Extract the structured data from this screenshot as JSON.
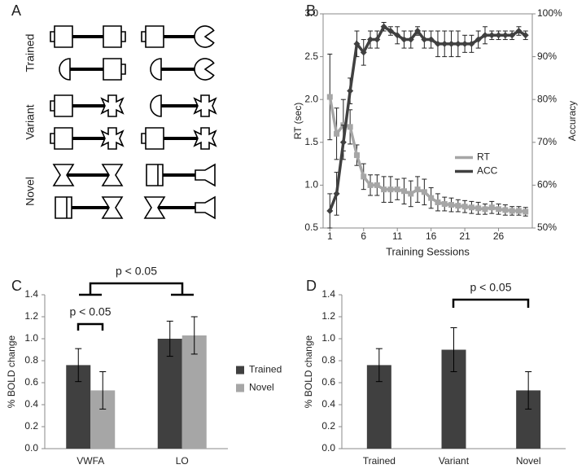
{
  "stimuli": {
    "panel": "A",
    "groups": [
      "Trained",
      "Variant",
      "Novel"
    ]
  },
  "chart_data": [
    {
      "type": "line",
      "panel": "B",
      "x_label": "Training Sessions",
      "y_label": "RT (sec)",
      "y2_label": "Accuracy",
      "x": [
        1,
        2,
        3,
        4,
        5,
        6,
        7,
        8,
        9,
        10,
        11,
        12,
        13,
        14,
        15,
        16,
        17,
        18,
        19,
        20,
        21,
        22,
        23,
        24,
        25,
        26,
        27,
        28,
        29,
        30
      ],
      "xlim": [
        0,
        31
      ],
      "xticks": [
        1,
        6,
        11,
        16,
        21,
        26
      ],
      "ylim": [
        0.5,
        3.0
      ],
      "yticks": [
        {
          "value": 0.5,
          "label": "0.5"
        },
        {
          "value": 1,
          "label": "1.0"
        },
        {
          "value": 1.5,
          "label": "1.5"
        },
        {
          "value": 2,
          "label": "2.0"
        },
        {
          "value": 2.5,
          "label": "2.5"
        },
        {
          "value": 3,
          "label": "3.0"
        }
      ],
      "y2lim": [
        50,
        100
      ],
      "y2ticks": [
        {
          "value": 50,
          "label": "50%"
        },
        {
          "value": 60,
          "label": "60%"
        },
        {
          "value": 70,
          "label": "70%"
        },
        {
          "value": 80,
          "label": "80%"
        },
        {
          "value": 90,
          "label": "90%"
        },
        {
          "value": 100,
          "label": "100%"
        }
      ],
      "legend": "center-right",
      "series": [
        {
          "name": "RT",
          "color": "#a6a6a6",
          "marker": "square",
          "values": [
            2.03,
            1.6,
            1.7,
            1.68,
            1.35,
            1.1,
            1.0,
            1.0,
            0.95,
            0.95,
            0.95,
            0.93,
            0.9,
            0.95,
            0.92,
            0.85,
            0.8,
            0.78,
            0.77,
            0.76,
            0.75,
            0.74,
            0.73,
            0.72,
            0.74,
            0.72,
            0.71,
            0.7,
            0.7,
            0.69
          ],
          "errors": [
            0.5,
            0.3,
            0.3,
            0.2,
            0.12,
            0.15,
            0.12,
            0.12,
            0.15,
            0.15,
            0.12,
            0.15,
            0.15,
            0.15,
            0.15,
            0.12,
            0.1,
            0.08,
            0.08,
            0.07,
            0.07,
            0.07,
            0.07,
            0.06,
            0.07,
            0.06,
            0.06,
            0.05,
            0.05,
            0.05
          ]
        },
        {
          "name": "ACC",
          "color": "#404040",
          "marker": "diamond",
          "axis": "y2",
          "values": [
            54,
            58,
            70,
            82,
            93,
            91,
            94,
            94,
            97,
            96,
            95,
            94,
            94,
            96,
            94,
            94,
            93,
            93,
            93,
            93,
            93,
            93,
            94,
            95,
            95,
            95,
            95,
            95,
            96,
            95
          ],
          "errors": [
            4,
            5,
            4,
            3,
            3,
            3,
            2,
            2,
            1,
            1,
            2,
            2,
            2,
            1,
            2,
            2,
            3,
            3,
            3,
            3,
            2,
            2,
            2,
            2,
            1,
            1,
            1,
            1,
            1,
            1
          ]
        }
      ]
    },
    {
      "type": "bar",
      "panel": "C",
      "y_label": "% BOLD change",
      "categories": [
        "VWFA",
        "LO"
      ],
      "ylim": [
        0,
        1.4
      ],
      "yticks": [
        {
          "value": 0,
          "label": "0.0"
        },
        {
          "value": 0.2,
          "label": "0.2"
        },
        {
          "value": 0.4,
          "label": "0.4"
        },
        {
          "value": 0.6,
          "label": "0.6"
        },
        {
          "value": 0.8,
          "label": "0.8"
        },
        {
          "value": 1,
          "label": "1.0"
        },
        {
          "value": 1.2,
          "label": "1.2"
        },
        {
          "value": 1.4,
          "label": "1.4"
        }
      ],
      "legend": "right",
      "annotations": [
        "p < 0.05",
        "p < 0.05"
      ],
      "series": [
        {
          "name": "Trained",
          "color": "#404040",
          "values": [
            0.76,
            1.0
          ],
          "errors": [
            0.15,
            0.16
          ]
        },
        {
          "name": "Novel",
          "color": "#a6a6a6",
          "values": [
            0.53,
            1.03
          ],
          "errors": [
            0.17,
            0.17
          ]
        }
      ]
    },
    {
      "type": "bar",
      "panel": "D",
      "y_label": "% BOLD change",
      "categories": [
        "Trained",
        "Variant",
        "Novel"
      ],
      "ylim": [
        0,
        1.4
      ],
      "yticks": [
        {
          "value": 0,
          "label": "0.0"
        },
        {
          "value": 0.2,
          "label": "0.2"
        },
        {
          "value": 0.4,
          "label": "0.4"
        },
        {
          "value": 0.6,
          "label": "0.6"
        },
        {
          "value": 0.8,
          "label": "0.8"
        },
        {
          "value": 1,
          "label": "1.0"
        },
        {
          "value": 1.2,
          "label": "1.2"
        },
        {
          "value": 1.4,
          "label": "1.4"
        }
      ],
      "annotations": [
        "p < 0.05"
      ],
      "series": [
        {
          "color": "#404040",
          "values": [
            0.76,
            0.9,
            0.53
          ],
          "errors": [
            0.15,
            0.2,
            0.17
          ]
        }
      ]
    }
  ]
}
